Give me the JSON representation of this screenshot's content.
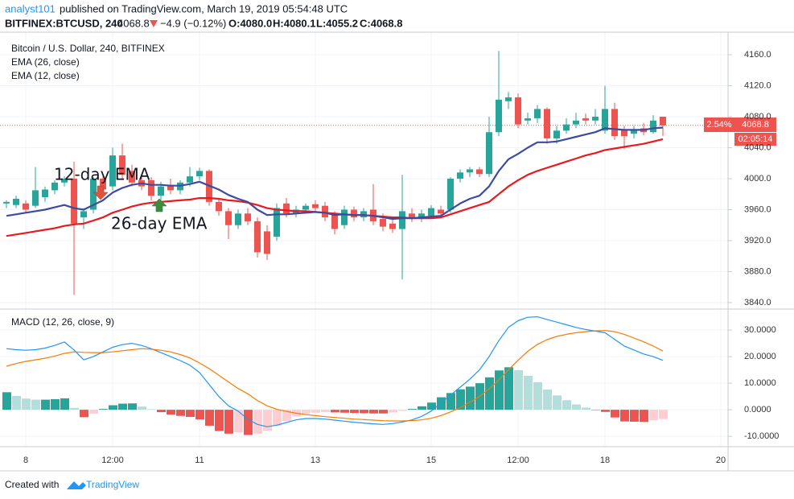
{
  "header": {
    "author": "analyst101",
    "byline": "published on TradingView.com, March 19, 2019 05:54:48 UTC",
    "symbol": "BITFINEX:BTCUSD, 240",
    "last": "4068.8",
    "change": "−4.9 (−0.12%)",
    "open": "O:4080.0",
    "high": "H:4080.1",
    "low": "L:4055.2",
    "close": "C:4068.8",
    "change_pct": "2.54%",
    "countdown": "02:05:14"
  },
  "footer": {
    "created": "Created with",
    "brand": "TradingView"
  },
  "chart_data": [
    {
      "type": "candlestick",
      "title": "Bitcoin / U.S. Dollar, 240, BITFINEX",
      "categories": [
        null,
        null,
        "8",
        null,
        null,
        null,
        null,
        null,
        null,
        null,
        null,
        "12:00",
        null,
        null,
        null,
        null,
        null,
        null,
        null,
        null,
        "11",
        null,
        null,
        null,
        null,
        null,
        null,
        null,
        null,
        null,
        null,
        null,
        "13",
        null,
        null,
        null,
        null,
        null,
        null,
        null,
        null,
        null,
        null,
        null,
        "15",
        null,
        null,
        null,
        null,
        null,
        null,
        null,
        null,
        "12:00",
        null,
        null,
        null,
        null,
        null,
        null,
        null,
        null,
        "18",
        null,
        null,
        null,
        null,
        null,
        null,
        null,
        null,
        null,
        null,
        null,
        "20"
      ],
      "open": [
        3968,
        3966,
        3968,
        3965,
        3976,
        3985,
        3995,
        4000,
        3950,
        3960,
        4000,
        3990,
        4030,
        4010,
        3998,
        3998,
        3978,
        3992,
        3985,
        3995,
        4003,
        4010,
        3970,
        3958,
        3940,
        3955,
        3945,
        3932,
        3925,
        3968,
        3955,
        3960,
        3967,
        3965,
        3955,
        3940,
        3960,
        3950,
        3960,
        3948,
        3942,
        3935,
        3955,
        3948,
        3952,
        3960,
        3960,
        4000,
        4008,
        4012,
        4006,
        4060,
        4100,
        4105,
        4075,
        4078,
        4090,
        4052,
        4062,
        4070,
        4078,
        4075,
        4062,
        4090,
        4063,
        4058,
        4065,
        4060,
        4080.0,
        null,
        null,
        null,
        null,
        null,
        null
      ],
      "high": [
        3972,
        3978,
        3972,
        4015,
        3990,
        3998,
        4003,
        4022,
        3962,
        4002,
        4006,
        4040,
        4045,
        4018,
        4005,
        4002,
        3996,
        4000,
        3998,
        4015,
        4014,
        4012,
        3975,
        3962,
        3960,
        3962,
        3950,
        3940,
        3968,
        3975,
        3965,
        3968,
        3972,
        3970,
        3958,
        3965,
        3964,
        3962,
        3993,
        3955,
        3948,
        4005,
        3962,
        3960,
        3966,
        3965,
        4002,
        4012,
        4015,
        4015,
        4080,
        4165,
        4112,
        4110,
        4085,
        4095,
        4092,
        4068,
        4078,
        4085,
        4084,
        4090,
        4120,
        4098,
        4068,
        4068,
        4072,
        4082,
        4080.1,
        null,
        null,
        null,
        null,
        null,
        null
      ],
      "low": [
        3962,
        3962,
        3956,
        3962,
        3970,
        3980,
        3990,
        3850,
        3935,
        3955,
        3982,
        3985,
        4000,
        3990,
        3985,
        3972,
        3972,
        3980,
        3980,
        3990,
        3998,
        3965,
        3952,
        3922,
        3935,
        3940,
        3898,
        3895,
        3920,
        3950,
        3950,
        3955,
        3958,
        3945,
        3928,
        3935,
        3945,
        3945,
        3940,
        3932,
        3930,
        3870,
        3944,
        3944,
        3948,
        3950,
        3956,
        3995,
        4002,
        4002,
        4002,
        4055,
        4090,
        4065,
        4070,
        4072,
        4045,
        4045,
        4058,
        4065,
        4070,
        4070,
        4058,
        4050,
        4038,
        4052,
        4056,
        4058,
        4055.2,
        null,
        null,
        null,
        null,
        null,
        null
      ],
      "close": [
        3970,
        3974,
        3960,
        3985,
        3986,
        3995,
        4000,
        3942,
        3958,
        4000,
        3986,
        4030,
        4005,
        3995,
        3990,
        3978,
        3990,
        3985,
        3995,
        4003,
        4010,
        3970,
        3958,
        3940,
        3955,
        3945,
        3905,
        3903,
        3962,
        3955,
        3960,
        3965,
        3962,
        3950,
        3935,
        3960,
        3950,
        3958,
        3945,
        3938,
        3935,
        3958,
        3948,
        3955,
        3962,
        3955,
        4000,
        4008,
        4012,
        4006,
        4060,
        4102,
        4105,
        4070,
        4078,
        4090,
        4052,
        4062,
        4070,
        4075,
        4075,
        4080,
        4090,
        4055,
        4055,
        4062,
        4060,
        4075,
        4068.8,
        null,
        null,
        null,
        null,
        null,
        null
      ],
      "up_color": "#26a69a",
      "down_color": "#ef5350",
      "series": [
        {
          "name": "EMA (26, close)",
          "color": "#e8191f",
          "values": [
            3926,
            3928,
            3930,
            3932,
            3934,
            3936,
            3939,
            3941,
            3942,
            3946,
            3950,
            3956,
            3960,
            3964,
            3967,
            3969,
            3970,
            3971,
            3972,
            3973,
            3975,
            3975,
            3974,
            3972,
            3971,
            3969,
            3966,
            3962,
            3960,
            3959,
            3958,
            3958,
            3957,
            3956,
            3955,
            3954,
            3953,
            3953,
            3952,
            3951,
            3950,
            3950,
            3949,
            3949,
            3949,
            3950,
            3954,
            3958,
            3962,
            3966,
            3970,
            3980,
            3990,
            3998,
            4005,
            4010,
            4014,
            4018,
            4022,
            4026,
            4030,
            4033,
            4037,
            4039,
            4041,
            4043,
            4045,
            4048,
            4051,
            null,
            null,
            null,
            null,
            null,
            null
          ]
        },
        {
          "name": "EMA (12, close)",
          "color": "#3c4ba0",
          "values": [
            3952,
            3954,
            3956,
            3958,
            3960,
            3963,
            3966,
            3962,
            3960,
            3966,
            3972,
            3982,
            3988,
            3992,
            3994,
            3992,
            3992,
            3991,
            3991,
            3993,
            3996,
            3991,
            3986,
            3979,
            3974,
            3970,
            3960,
            3953,
            3954,
            3954,
            3955,
            3956,
            3957,
            3956,
            3953,
            3954,
            3953,
            3953,
            3952,
            3950,
            3948,
            3949,
            3949,
            3950,
            3951,
            3952,
            3960,
            3968,
            3974,
            3978,
            3990,
            4010,
            4025,
            4032,
            4040,
            4047,
            4047,
            4048,
            4051,
            4054,
            4057,
            4060,
            4065,
            4064,
            4063,
            4063,
            4063,
            4065,
            4066,
            null,
            null,
            null,
            null,
            null,
            null
          ]
        }
      ],
      "annotations": [
        "12-day EMA",
        "26-day EMA"
      ],
      "ylim": [
        3832.7,
        4189.1
      ],
      "yticks": [
        {
          "value": 4160,
          "label": "4160.0"
        },
        {
          "value": 4120,
          "label": "4120.0"
        },
        {
          "value": 4080,
          "label": "4080.0"
        },
        {
          "value": 4040,
          "label": "4040.0"
        },
        {
          "value": 4000,
          "label": "4000.0"
        },
        {
          "value": 3960,
          "label": "3960.0"
        },
        {
          "value": 3920,
          "label": "3920.0"
        },
        {
          "value": 3880,
          "label": "3880.0"
        },
        {
          "value": 3840,
          "label": "3840.0"
        }
      ],
      "grid": true
    },
    {
      "type": "macd",
      "title": "MACD (12, 26, close, 9)",
      "series": [
        {
          "color": "#2196f3",
          "values": [
            23,
            22.6,
            22.4,
            22.6,
            23.2,
            24.2,
            25.5,
            22.5,
            18.8,
            20,
            21.8,
            23.5,
            24.5,
            25,
            24.2,
            23,
            21.5,
            20,
            18.5,
            16.8,
            14,
            9.5,
            5,
            1.5,
            -0.5,
            -3.5,
            -5.5,
            -6.4,
            -5.8,
            -4.8,
            -3.8,
            -3.3,
            -3.3,
            -3.5,
            -3.9,
            -4.3,
            -4.7,
            -5,
            -5.3,
            -5.5,
            -5.2,
            -4.6,
            -3.8,
            -2.5,
            -0.5,
            2.5,
            5.5,
            8.5,
            11.5,
            15,
            20,
            26,
            31,
            33.5,
            34.8,
            35,
            34,
            33,
            32,
            31,
            30.2,
            29.6,
            29,
            26.5,
            24,
            22.5,
            21,
            20,
            18.6,
            null,
            null,
            null,
            null,
            null,
            null
          ]
        },
        {
          "color": "#f57c00",
          "values": [
            16.4,
            17.4,
            18.2,
            18.8,
            19.4,
            20.2,
            21.2,
            21.8,
            21.6,
            21.5,
            21.5,
            21.8,
            22.2,
            22.6,
            23,
            22.8,
            22.4,
            21.8,
            20.8,
            19.5,
            17.6,
            15.5,
            13,
            10.5,
            8,
            6,
            3.5,
            1.5,
            0.2,
            -0.6,
            -1.3,
            -1.8,
            -2.2,
            -2.6,
            -2.9,
            -3.2,
            -3.5,
            -3.7,
            -3.9,
            -4.1,
            -4.2,
            -4.2,
            -4.1,
            -3.8,
            -3.2,
            -2.2,
            -0.8,
            0.8,
            2.8,
            5,
            7.8,
            11.2,
            15,
            18.6,
            22,
            24.6,
            26.4,
            27.6,
            28.4,
            29,
            29.4,
            29.7,
            29.8,
            29.4,
            28.4,
            27,
            25.6,
            24,
            22.1,
            null,
            null,
            null,
            null,
            null,
            null
          ]
        }
      ],
      "histogram": {
        "colors": [
          "#26a69a",
          "#b2dfdb",
          "#ef5350",
          "#ffcdd2"
        ],
        "values": [
          6.6,
          5.2,
          4.2,
          3.8,
          3.8,
          4,
          4.3,
          0.7,
          -2.8,
          -1.5,
          0.3,
          1.7,
          2.3,
          2.4,
          1.2,
          0.2,
          -0.9,
          -1.8,
          -2.3,
          -2.7,
          -3.6,
          -6,
          -8,
          -9,
          -8.5,
          -9.5,
          -9,
          -7.9,
          -6,
          -4.2,
          -2.5,
          -1.5,
          -1.1,
          -0.9,
          -1,
          -1.1,
          -1.2,
          -1.3,
          -1.4,
          -1.4,
          -1,
          -0.4,
          0.3,
          1.3,
          2.7,
          4.7,
          6.3,
          7.7,
          8.7,
          10,
          12.2,
          14.8,
          16,
          14.9,
          12.8,
          10.4,
          7.6,
          5.4,
          3.6,
          2,
          0.8,
          -0.1,
          -0.8,
          -2.9,
          -4.4,
          -4.5,
          -4.6,
          -4,
          -3.5,
          null,
          null,
          null,
          null,
          null,
          null
        ]
      },
      "ylim": [
        -13.9,
        37.6
      ],
      "yticks": [
        {
          "value": 30,
          "label": "30.0000"
        },
        {
          "value": 20,
          "label": "20.0000"
        },
        {
          "value": 10,
          "label": "10.0000"
        },
        {
          "value": 0,
          "label": "0.0000"
        },
        {
          "value": -10,
          "label": "-10.0000"
        }
      ],
      "grid": true
    }
  ]
}
